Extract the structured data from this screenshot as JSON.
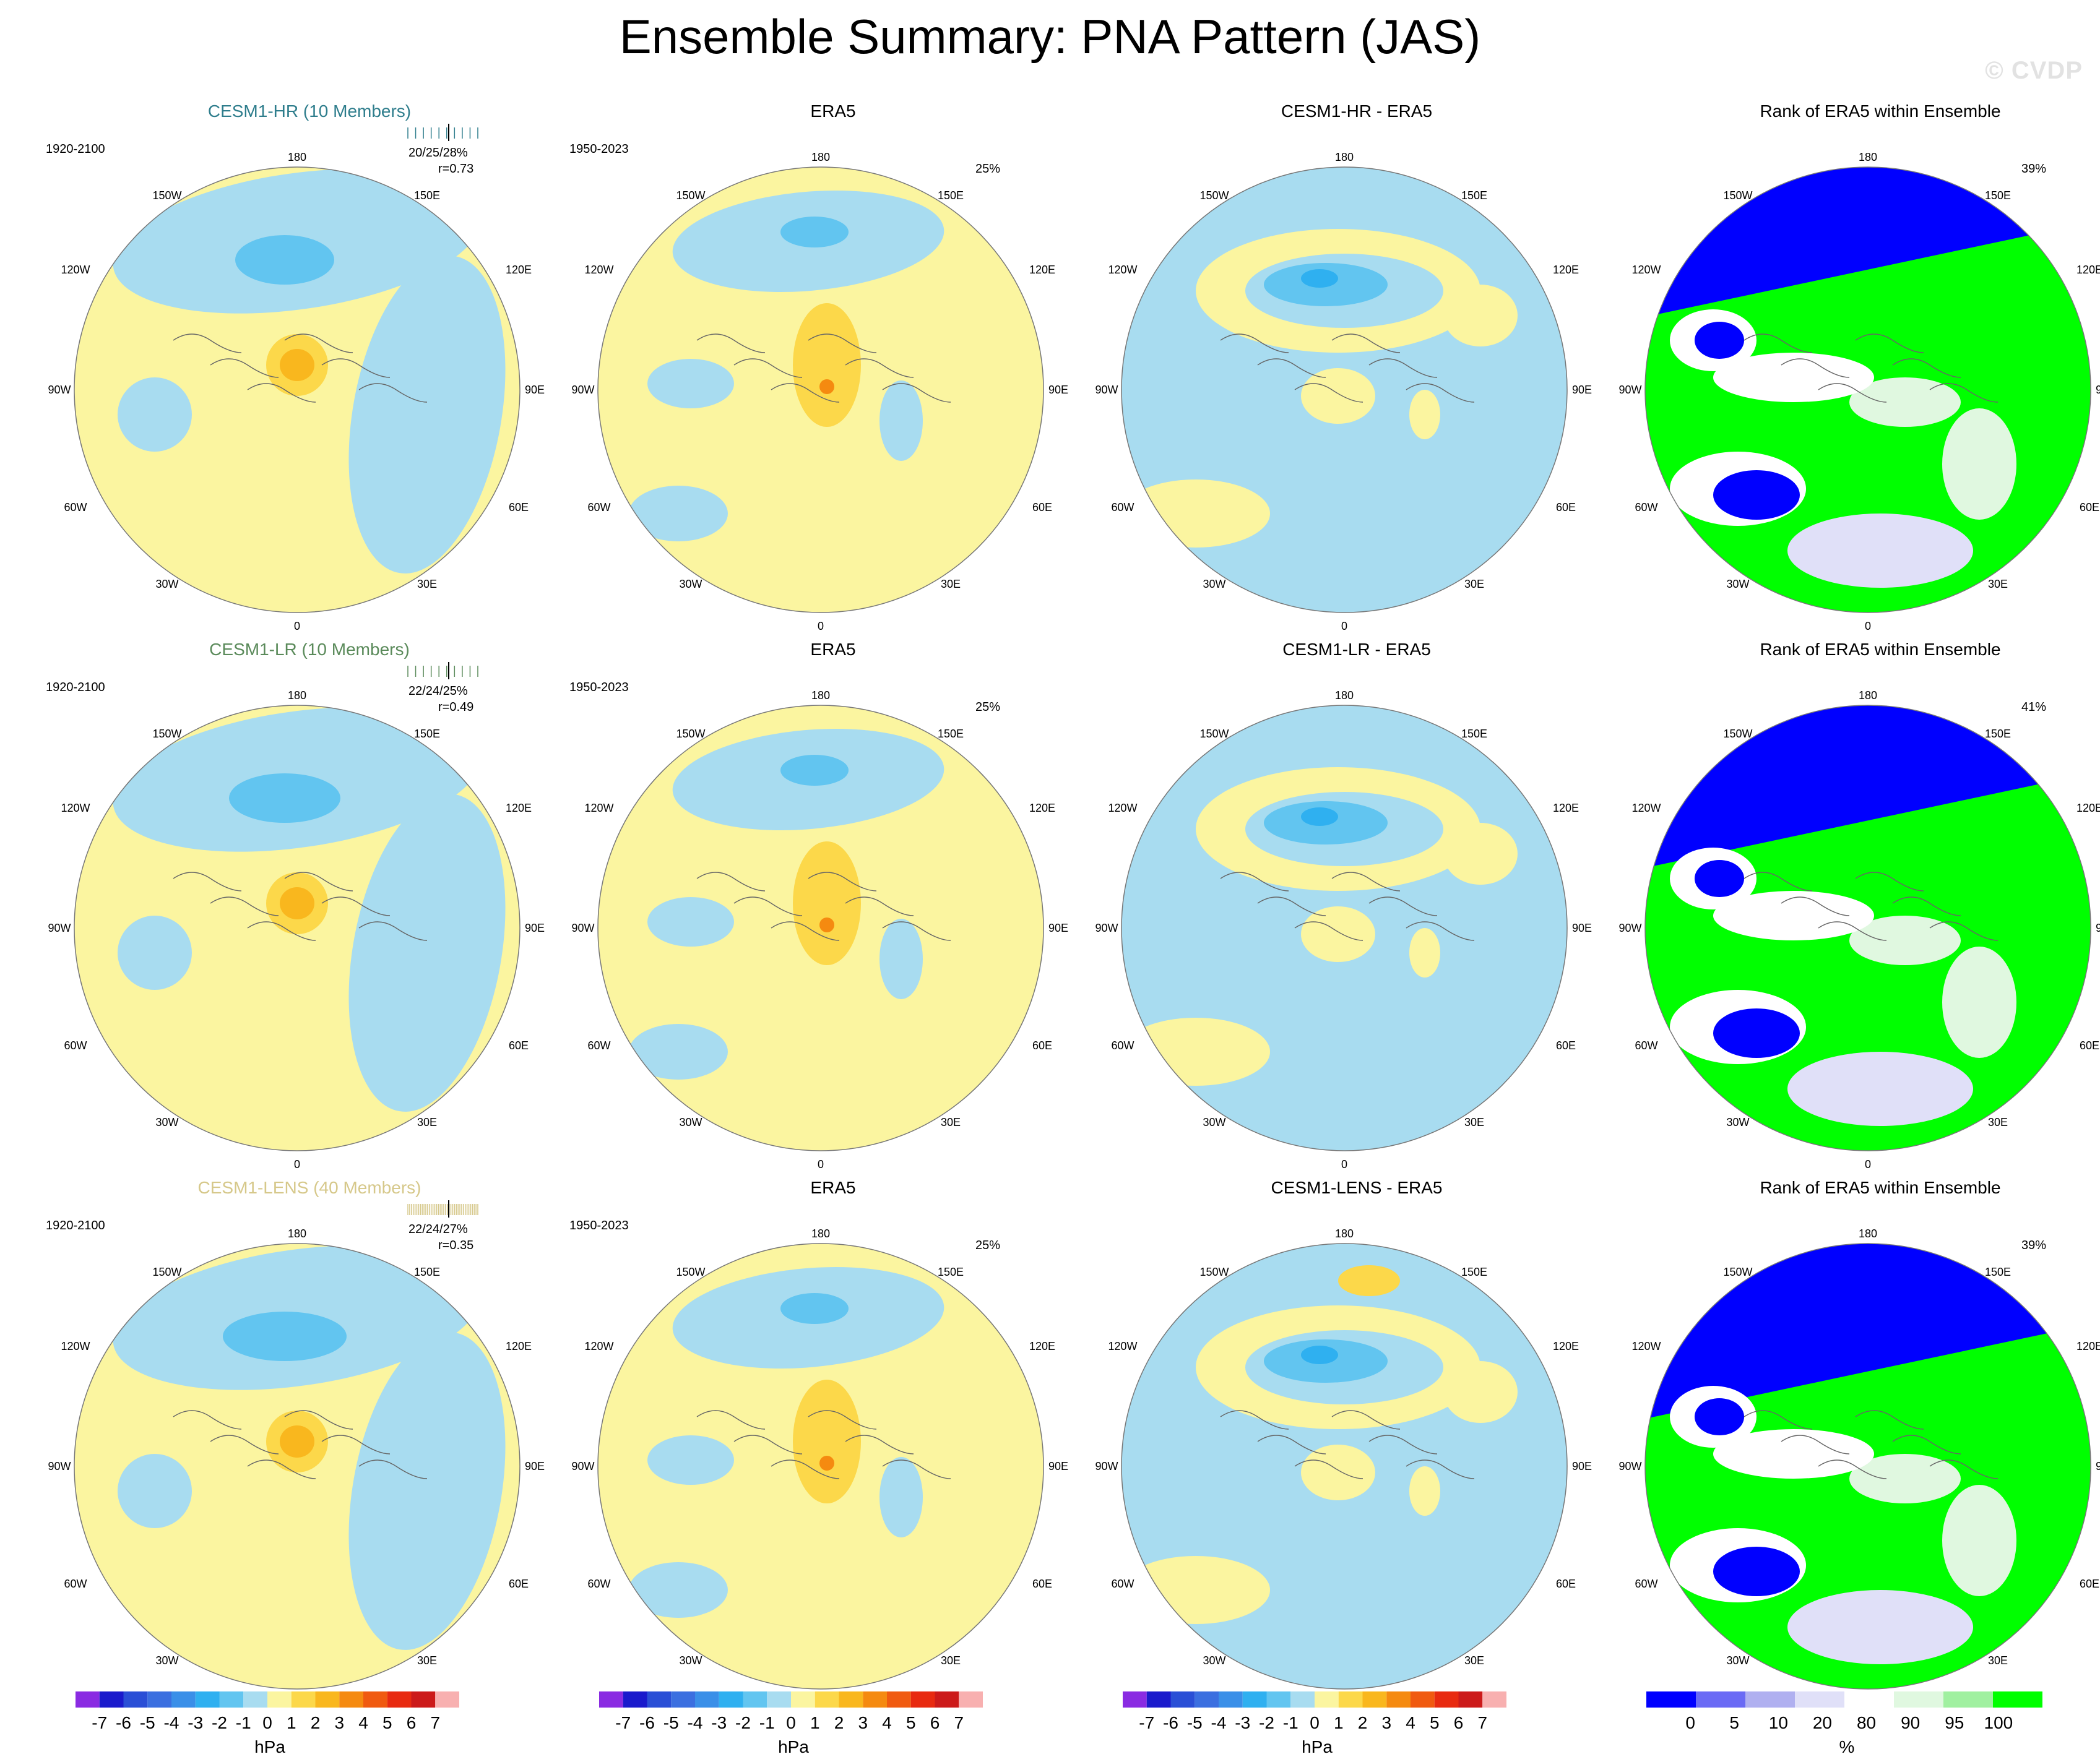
{
  "title": "Ensemble Summary: PNA Pattern (JAS)",
  "watermark": "© CVDP",
  "lon_labels": {
    "n": "180",
    "s": "0",
    "e": "90E",
    "w": "90W",
    "ne": "150E",
    "nw": "150W",
    "ne2": "120E",
    "nw2": "120W",
    "se": "60E",
    "sw": "60W",
    "se2": "30E",
    "sw2": "30W"
  },
  "rows": [
    {
      "model": {
        "title": "CESM1-HR (10 Members)",
        "color": "#2e7d8c",
        "years": "1920-2100",
        "stats": "20/25/28%",
        "corr": "r=0.73"
      },
      "obs": {
        "title": "ERA5",
        "years": "1950-2023",
        "pct": "25%"
      },
      "diff": {
        "title": "CESM1-HR - ERA5"
      },
      "rank": {
        "title": "Rank of ERA5 within Ensemble",
        "pct": "39%"
      }
    },
    {
      "model": {
        "title": "CESM1-LR (10 Members)",
        "color": "#5a8a5a",
        "years": "1920-2100",
        "stats": "22/24/25%",
        "corr": "r=0.49"
      },
      "obs": {
        "title": "ERA5",
        "years": "1950-2023",
        "pct": "25%"
      },
      "diff": {
        "title": "CESM1-LR - ERA5"
      },
      "rank": {
        "title": "Rank of ERA5 within Ensemble",
        "pct": "41%"
      }
    },
    {
      "model": {
        "title": "CESM1-LENS (40 Members)",
        "color": "#d6c88a",
        "years": "1920-2100",
        "stats": "22/24/27%",
        "corr": "r=0.35"
      },
      "obs": {
        "title": "ERA5",
        "years": "1950-2023",
        "pct": "25%"
      },
      "diff": {
        "title": "CESM1-LENS - ERA5"
      },
      "rank": {
        "title": "Rank of ERA5 within Ensemble",
        "pct": "39%"
      }
    }
  ],
  "hpa_colorbar": {
    "unit": "hPa",
    "labels": [
      "-7",
      "-6",
      "-5",
      "-4",
      "-3",
      "-2",
      "-1",
      "0",
      "1",
      "2",
      "3",
      "4",
      "5",
      "6",
      "7"
    ],
    "colors": [
      "#8a2be2",
      "#1a1acc",
      "#2a4fd6",
      "#3b6fe0",
      "#3a8fe8",
      "#2fb0f0",
      "#62c5f0",
      "#a8dcf0",
      "#fbf5a0",
      "#fcd84a",
      "#f9b71e",
      "#f58a10",
      "#f05a10",
      "#e82a10",
      "#cc1a1a",
      "#f8b0b0"
    ]
  },
  "rank_colorbar": {
    "unit": "%",
    "labels": [
      "0",
      "5",
      "10",
      "20",
      "80",
      "90",
      "95",
      "100"
    ],
    "colors": [
      "#0000ff",
      "#6a6af5",
      "#b0b0f0",
      "#e0e0f8",
      "#ffffff",
      "#e0f8e0",
      "#a0f0a0",
      "#00ff00"
    ]
  }
}
